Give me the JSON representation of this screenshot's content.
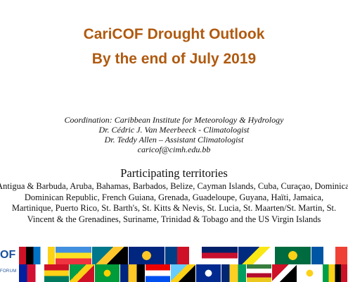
{
  "title": {
    "line1": "CariCOF Drought Outlook",
    "line2": "By the end of July 2019"
  },
  "credits": {
    "coordination": "Coordination: Caribbean Institute for Meteorology & Hydrology",
    "person1": "Dr. Cédric J. Van Meerbeeck - Climatologist",
    "person2": "Dr. Teddy Allen – Assistant Climatologist",
    "email": "caricof@cimh.edu.bb"
  },
  "participating": {
    "heading": "Participating territories",
    "lines": [
      "Antigua & Barbuda, Aruba, Bahamas, Barbados, Belize, Cayman Islands, Cuba, Curaçao, Dominica,",
      "Dominican Republic, French Guiana, Grenada, Guadeloupe, Guyana, Haïti, Jamaica,",
      "Martinique, Puerto Rico, St. Barth's, St. Kitts & Nevis, St. Lucia, St. Maarten/St. Martin, St.",
      "Vincent & the Grenadines, Suriname, Trinidad & Tobago and the US Virgin Islands"
    ]
  },
  "logo": {
    "big": "OF",
    "small": "FORUM"
  },
  "flags": [
    {
      "name": "antigua-flag",
      "row": 0,
      "colors": [
        "#ce1126",
        "#000000",
        "#0072c6",
        "#ffffff",
        "#fcd116"
      ]
    },
    {
      "name": "aruba-flag",
      "row": 0,
      "colors": [
        "#418fde",
        "#fbe122",
        "#ef3340"
      ]
    },
    {
      "name": "bahamas-flag",
      "row": 0,
      "colors": [
        "#00778b",
        "#ffc72c",
        "#000000"
      ]
    },
    {
      "name": "barbados-flag",
      "row": 0,
      "colors": [
        "#00267f",
        "#ffc726",
        "#000000"
      ]
    },
    {
      "name": "belize-flag",
      "row": 0,
      "colors": [
        "#003f87",
        "#ce1126",
        "#ffffff"
      ]
    },
    {
      "name": "cayman-flag",
      "row": 0,
      "colors": [
        "#012169",
        "#c8102e",
        "#ffffff"
      ]
    },
    {
      "name": "curacao-flag",
      "row": 0,
      "colors": [
        "#002b7f",
        "#f9e814",
        "#ffffff"
      ]
    },
    {
      "name": "dominica-flag",
      "row": 0,
      "colors": [
        "#006b3f",
        "#fcd116",
        "#000000",
        "#d41c30"
      ]
    },
    {
      "name": "france-flag",
      "row": 0,
      "colors": [
        "#0055a4",
        "#ffffff",
        "#ef4135"
      ]
    },
    {
      "name": "haiti-flag",
      "row": 1,
      "colors": [
        "#00209f",
        "#d21034",
        "#ffffff"
      ]
    },
    {
      "name": "grenada-flag",
      "row": 1,
      "colors": [
        "#ce1126",
        "#fcd116",
        "#007a5e"
      ]
    },
    {
      "name": "guyana-flag",
      "row": 1,
      "colors": [
        "#009e49",
        "#fcd116",
        "#ce1126",
        "#000000"
      ]
    },
    {
      "name": "jamaica-flag",
      "row": 1,
      "colors": [
        "#009b3a",
        "#fed100",
        "#000000"
      ]
    },
    {
      "name": "barbados-flag-2",
      "row": 1,
      "colors": [
        "#00267f",
        "#ffc726",
        "#000000"
      ]
    },
    {
      "name": "puerto-rico-flag",
      "row": 1,
      "colors": [
        "#ed0000",
        "#ffffff",
        "#0050f0"
      ]
    },
    {
      "name": "st-lucia-flag",
      "row": 1,
      "colors": [
        "#66ccff",
        "#fcd116",
        "#000000",
        "#ffffff"
      ]
    },
    {
      "name": "cuba-flag",
      "row": 1,
      "colors": [
        "#002a8f",
        "#ffffff",
        "#cf142b"
      ]
    },
    {
      "name": "st-vincent-flag",
      "row": 1,
      "colors": [
        "#002674",
        "#fcd022",
        "#009e60"
      ]
    },
    {
      "name": "suriname-flag",
      "row": 1,
      "colors": [
        "#377e3f",
        "#ffffff",
        "#b40a2d",
        "#ecc81d"
      ]
    },
    {
      "name": "trinidad-flag",
      "row": 1,
      "colors": [
        "#ce1126",
        "#ffffff",
        "#000000"
      ]
    },
    {
      "name": "bvi-flag",
      "row": 1,
      "colors": [
        "#ffffff",
        "#fcd116",
        "#0a2b6e"
      ]
    },
    {
      "name": "st-kitts-flag",
      "row": 1,
      "colors": [
        "#009e49",
        "#fcd116",
        "#000000",
        "#ce1126"
      ]
    }
  ]
}
